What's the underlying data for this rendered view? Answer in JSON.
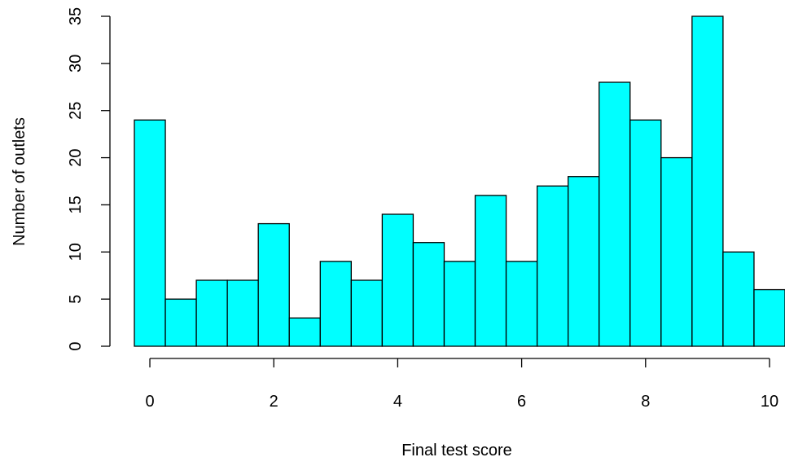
{
  "chart_data": {
    "type": "bar",
    "title": "",
    "xlabel": "Final test score",
    "ylabel": "Number of outlets",
    "bin_edges": [
      -0.25,
      0.25,
      0.75,
      1.25,
      1.75,
      2.25,
      2.75,
      3.25,
      3.75,
      4.25,
      4.75,
      5.25,
      5.75,
      6.25,
      6.75,
      7.25,
      7.75,
      8.25,
      8.75,
      9.25,
      9.75,
      10.25
    ],
    "values": [
      24,
      5,
      7,
      7,
      13,
      3,
      9,
      7,
      14,
      11,
      9,
      16,
      9,
      17,
      18,
      28,
      24,
      20,
      35,
      10,
      6
    ],
    "xlim": [
      -0.25,
      10.25
    ],
    "ylim": [
      0,
      35
    ],
    "x_ticks": [
      "0",
      "2",
      "4",
      "6",
      "8",
      "10"
    ],
    "y_ticks": [
      "0",
      "5",
      "10",
      "15",
      "20",
      "25",
      "30",
      "35"
    ],
    "bar_color": "#00FFFF",
    "grid": false,
    "legend": "none"
  }
}
